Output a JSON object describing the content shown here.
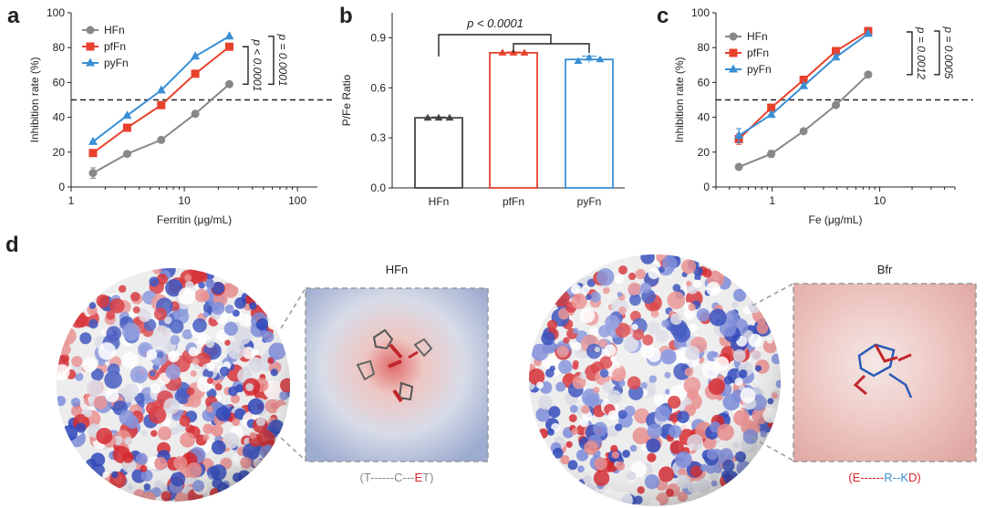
{
  "panels": {
    "a": "a",
    "b": "b",
    "c": "c",
    "d": "d"
  },
  "colors": {
    "HFn": "#888888",
    "pfFn": "#e8412c",
    "pyFn": "#3a8fd4",
    "neg": "#d4262b",
    "pos": "#2a44b8",
    "white": "#f2f2f2"
  },
  "chart_data": [
    {
      "id": "a",
      "type": "line",
      "xlabel": "Ferritin (μg/mL)",
      "ylabel": "Inhibition rate (%)",
      "xscale": "log",
      "xlim": [
        1,
        150
      ],
      "ylim": [
        0,
        100
      ],
      "xticks": [
        1,
        10,
        100
      ],
      "yticks": [
        0,
        20,
        40,
        60,
        80,
        100
      ],
      "threshold": 50,
      "legend": "top-left",
      "series": [
        {
          "name": "HFn",
          "color": "#888888",
          "marker": "circle",
          "x": [
            1.56,
            3.125,
            6.25,
            12.5,
            25
          ],
          "y": [
            8,
            19,
            27,
            42,
            59
          ],
          "err": [
            3,
            1,
            1,
            1,
            1
          ]
        },
        {
          "name": "pfFn",
          "color": "#e8412c",
          "marker": "square",
          "x": [
            1.56,
            3.125,
            6.25,
            12.5,
            25
          ],
          "y": [
            19.5,
            34,
            47,
            65,
            80.5
          ],
          "err": [
            1,
            1,
            1,
            1,
            1
          ]
        },
        {
          "name": "pyFn",
          "color": "#3a8fd4",
          "marker": "triangle",
          "x": [
            1.56,
            3.125,
            6.25,
            12.5,
            25
          ],
          "y": [
            26,
            41,
            55.5,
            75,
            86.5
          ],
          "err": [
            1,
            1,
            1,
            1,
            1
          ]
        }
      ],
      "annotations": [
        "p < 0.0001",
        "p = 0.0001"
      ]
    },
    {
      "id": "b",
      "type": "bar",
      "ylabel": "P/Fe Ratio",
      "ylim": [
        0,
        1.05
      ],
      "yticks": [
        0.0,
        0.3,
        0.6,
        0.9
      ],
      "categories": [
        "HFn",
        "pfFn",
        "pyFn"
      ],
      "values": [
        0.42,
        0.81,
        0.77
      ],
      "points": [
        [
          0.42,
          0.42,
          0.42
        ],
        [
          0.81,
          0.81,
          0.81
        ],
        [
          0.76,
          0.78,
          0.77
        ]
      ],
      "err": [
        0.005,
        0.005,
        0.02
      ],
      "colors": [
        "#444444",
        "#e8412c",
        "#3a8fd4"
      ],
      "annotations": [
        "p < 0.0001"
      ]
    },
    {
      "id": "c",
      "type": "line",
      "xlabel": "Fe (μg/mL)",
      "ylabel": "Inhibition rate (%)",
      "xscale": "log",
      "xlim": [
        0.3,
        50
      ],
      "ylim": [
        0,
        100
      ],
      "xticks": [
        1,
        10
      ],
      "yticks": [
        0,
        20,
        40,
        60,
        80,
        100
      ],
      "threshold": 50,
      "legend": "top-left",
      "series": [
        {
          "name": "HFn",
          "color": "#888888",
          "marker": "circle",
          "x": [
            0.49,
            0.98,
            1.96,
            3.91,
            7.81
          ],
          "y": [
            11.5,
            19,
            32,
            47,
            64.5
          ],
          "err": [
            1,
            2,
            1,
            1,
            1
          ]
        },
        {
          "name": "pfFn",
          "color": "#e8412c",
          "marker": "square",
          "x": [
            0.49,
            0.98,
            1.96,
            3.91,
            7.81
          ],
          "y": [
            27.5,
            45.5,
            61.5,
            78,
            89.5
          ],
          "err": [
            3,
            1,
            1,
            1,
            1
          ]
        },
        {
          "name": "pyFn",
          "color": "#3a8fd4",
          "marker": "triangle",
          "x": [
            0.49,
            0.98,
            1.96,
            3.91,
            7.81
          ],
          "y": [
            29.5,
            41.5,
            58,
            74.5,
            88
          ],
          "err": [
            4,
            1,
            1,
            1,
            1
          ]
        }
      ],
      "annotations": [
        "p = 0.0012",
        "p = 0.0005"
      ]
    }
  ],
  "structures": {
    "left_title": "HFn",
    "right_title": "Bfr",
    "left_seq": [
      {
        "t": "(T",
        "c": "#888888"
      },
      {
        "t": "------",
        "c": "#888888"
      },
      {
        "t": "C",
        "c": "#888888"
      },
      {
        "t": "---",
        "c": "#888888"
      },
      {
        "t": "E",
        "c": "#d4262b"
      },
      {
        "t": "T)",
        "c": "#888888"
      }
    ],
    "right_seq": [
      {
        "t": "(E",
        "c": "#d4262b"
      },
      {
        "t": "------",
        "c": "#d4262b"
      },
      {
        "t": "R",
        "c": "#3a8fd4"
      },
      {
        "t": "--",
        "c": "#3a8fd4"
      },
      {
        "t": "K",
        "c": "#3a8fd4"
      },
      {
        "t": "D)",
        "c": "#d4262b"
      }
    ]
  }
}
